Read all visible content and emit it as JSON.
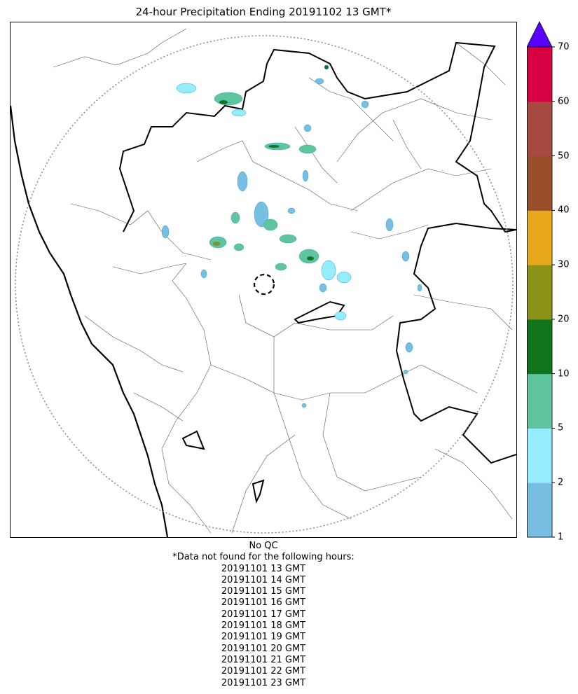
{
  "title": "24-hour Precipitation Ending 20191102 13 GMT*",
  "map": {
    "features": [
      "radar-range-ring",
      "radar-site-marker",
      "state-borders",
      "district-borders",
      "coastline",
      "precipitation-echoes"
    ]
  },
  "colorbar": {
    "ticks": [
      "1",
      "2",
      "5",
      "10",
      "20",
      "30",
      "40",
      "50",
      "60",
      "70"
    ],
    "bins": [
      {
        "from": 1,
        "to": 2,
        "color": "#77bfe2"
      },
      {
        "from": 2,
        "to": 5,
        "color": "#94ecfd"
      },
      {
        "from": 5,
        "to": 10,
        "color": "#5ec59c"
      },
      {
        "from": 10,
        "to": 20,
        "color": "#0f741b"
      },
      {
        "from": 20,
        "to": 30,
        "color": "#8b9419"
      },
      {
        "from": 30,
        "to": 40,
        "color": "#e6a91b"
      },
      {
        "from": 40,
        "to": 50,
        "color": "#9a4e29"
      },
      {
        "from": 50,
        "to": 60,
        "color": "#a64940"
      },
      {
        "from": 60,
        "to": 70,
        "color": "#d60043"
      }
    ],
    "extend_color": "#5a00fe"
  },
  "footer": {
    "qc": "No QC",
    "note": "*Data not found for the following hours:",
    "hours": [
      "20191101 13 GMT",
      "20191101 14 GMT",
      "20191101 15 GMT",
      "20191101 16 GMT",
      "20191101 17 GMT",
      "20191101 18 GMT",
      "20191101 19 GMT",
      "20191101 20 GMT",
      "20191101 21 GMT",
      "20191101 22 GMT",
      "20191101 23 GMT"
    ]
  }
}
